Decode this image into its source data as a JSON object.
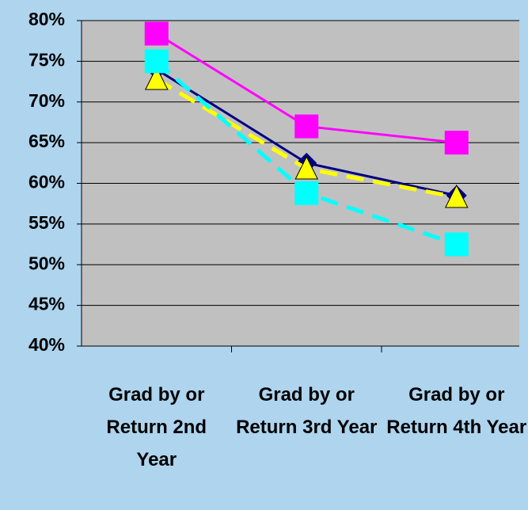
{
  "chart_data": {
    "type": "line",
    "categories": [
      "Grad by or Return 2nd Year",
      "Grad by or Return 3rd Year",
      "Grad by or Return 4th Year"
    ],
    "ylim": [
      40,
      80
    ],
    "yticks": [
      {
        "value": 40,
        "label": "40%"
      },
      {
        "value": 45,
        "label": "45%"
      },
      {
        "value": 50,
        "label": "50%"
      },
      {
        "value": 55,
        "label": "55%"
      },
      {
        "value": 60,
        "label": "60%"
      },
      {
        "value": 65,
        "label": "65%"
      },
      {
        "value": 70,
        "label": "70%"
      },
      {
        "value": 75,
        "label": "75%"
      },
      {
        "value": 80,
        "label": "80%"
      }
    ],
    "grid": true,
    "series": [
      {
        "color": "#000080",
        "marker": "diamond",
        "dashed": false,
        "values": [
          74,
          62.5,
          58.5
        ]
      },
      {
        "color": "#ff00ff",
        "marker": "square",
        "dashed": false,
        "values": [
          78.4,
          67,
          65
        ]
      },
      {
        "color": "#ffff00",
        "marker": "triangle",
        "dashed": true,
        "values": [
          72.8,
          61.8,
          58.3
        ]
      },
      {
        "color": "#00ffff",
        "marker": "square",
        "dashed": true,
        "values": [
          75,
          58.8,
          52.5
        ]
      }
    ]
  }
}
